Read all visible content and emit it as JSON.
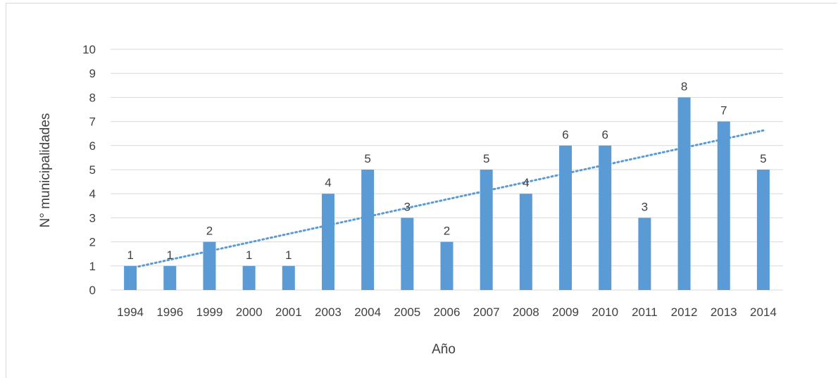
{
  "header": {
    "title": ""
  },
  "colors": {
    "bar": "#5b9bd5",
    "trend": "#5b9bd5",
    "grid": "#d9d9d9",
    "text": "#404040"
  },
  "chart_data": {
    "type": "bar",
    "title": "",
    "xlabel": "Año",
    "ylabel": "N° municipalidades",
    "ylim": [
      0,
      10
    ],
    "yticks": [
      0,
      1,
      2,
      3,
      4,
      5,
      6,
      7,
      8,
      9,
      10
    ],
    "categories": [
      "1994",
      "1996",
      "1999",
      "2000",
      "2001",
      "2003",
      "2004",
      "2005",
      "2006",
      "2007",
      "2008",
      "2009",
      "2010",
      "2011",
      "2012",
      "2013",
      "2014"
    ],
    "series": [
      {
        "values": [
          1,
          1,
          2,
          1,
          1,
          4,
          5,
          3,
          2,
          5,
          4,
          6,
          6,
          3,
          8,
          7,
          5
        ]
      }
    ],
    "data_labels": true,
    "trendline": {
      "type": "linear",
      "style": "dotted"
    },
    "grid": true,
    "legend": "none"
  }
}
